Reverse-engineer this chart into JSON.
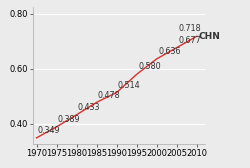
{
  "years": [
    1970,
    1975,
    1980,
    1985,
    1990,
    1995,
    2000,
    2005,
    2010
  ],
  "values": [
    0.349,
    0.389,
    0.433,
    0.478,
    0.514,
    0.58,
    0.636,
    0.677,
    0.718
  ],
  "line_color": "#d93030",
  "label_color": "#333333",
  "series_label": "CHN",
  "xlim": [
    1969,
    2012
  ],
  "ylim": [
    0.325,
    0.825
  ],
  "yticks": [
    0.4,
    0.6,
    0.8
  ],
  "xticks": [
    1970,
    1975,
    1980,
    1985,
    1990,
    1995,
    2000,
    2005,
    2010
  ],
  "bg_color": "#ebebeb",
  "plot_bg_color": "#ebebeb",
  "grid_color": "#ffffff",
  "font_size": 6.0,
  "label_font_size": 5.8
}
